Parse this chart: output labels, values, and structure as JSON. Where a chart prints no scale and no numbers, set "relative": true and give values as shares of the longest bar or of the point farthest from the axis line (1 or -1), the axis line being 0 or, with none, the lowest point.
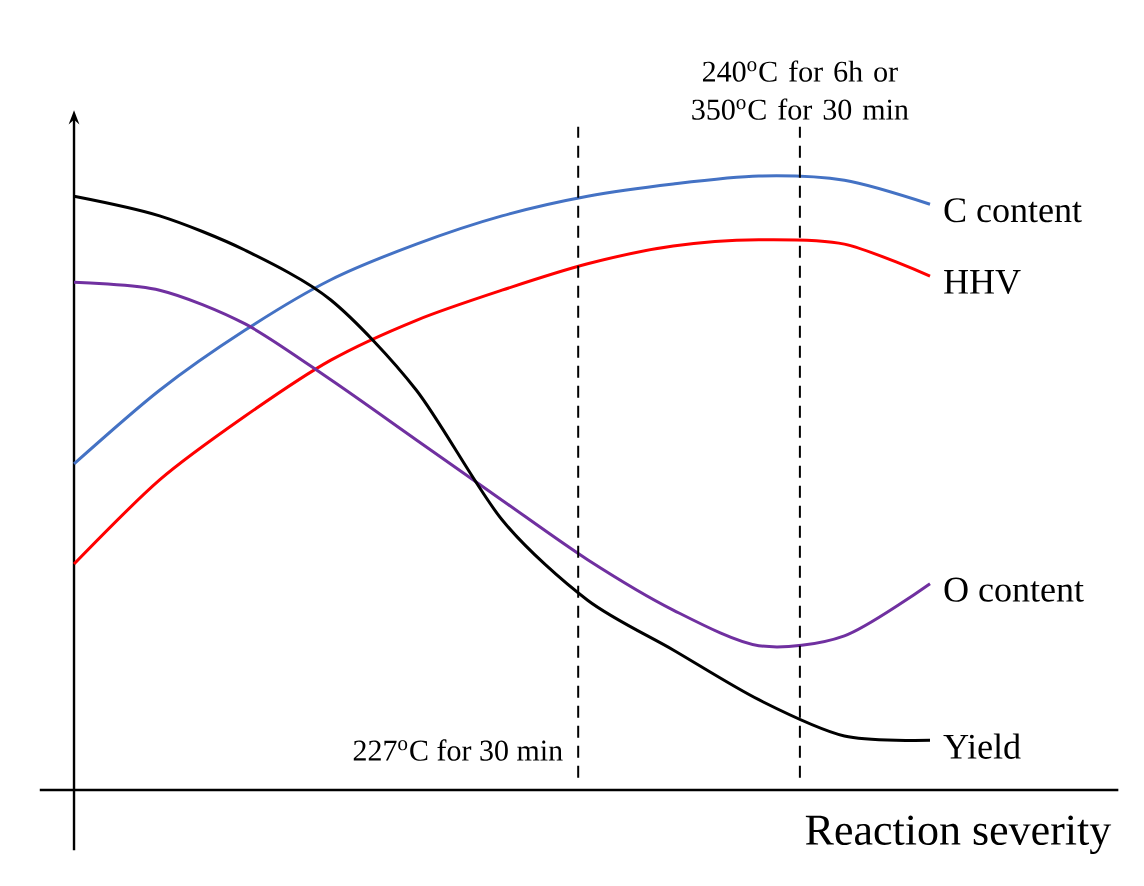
{
  "chart_data": {
    "type": "line",
    "relative": true,
    "xlabel": "Reaction severity",
    "categories": [
      null,
      null,
      null,
      null,
      null,
      null,
      null,
      null,
      null,
      null,
      null
    ],
    "series": [
      {
        "name": "C content",
        "color": "#4472c4",
        "values": [
          0.531,
          0.651,
          0.749,
          0.831,
          0.889,
          0.935,
          0.967,
          0.987,
          1,
          0.993,
          0.954
        ]
      },
      {
        "name": "HHV",
        "color": "#ff0000",
        "values": [
          0.368,
          0.505,
          0.609,
          0.7,
          0.765,
          0.814,
          0.857,
          0.886,
          0.896,
          0.889,
          0.837
        ]
      },
      {
        "name": "O content",
        "color": "#7030a0",
        "values": [
          0.827,
          0.814,
          0.759,
          0.668,
          0.57,
          0.472,
          0.375,
          0.293,
          0.235,
          0.251,
          0.336
        ]
      },
      {
        "name": "Yield",
        "color": "#000000",
        "values": [
          0.967,
          0.935,
          0.879,
          0.798,
          0.651,
          0.44,
          0.309,
          0.228,
          0.147,
          0.088,
          0.081
        ]
      }
    ],
    "annotations": [
      "227$^{o}$C for 30 min",
      "240$^{o}$C for 6h or 350$^{o}$C for 30 min"
    ]
  }
}
